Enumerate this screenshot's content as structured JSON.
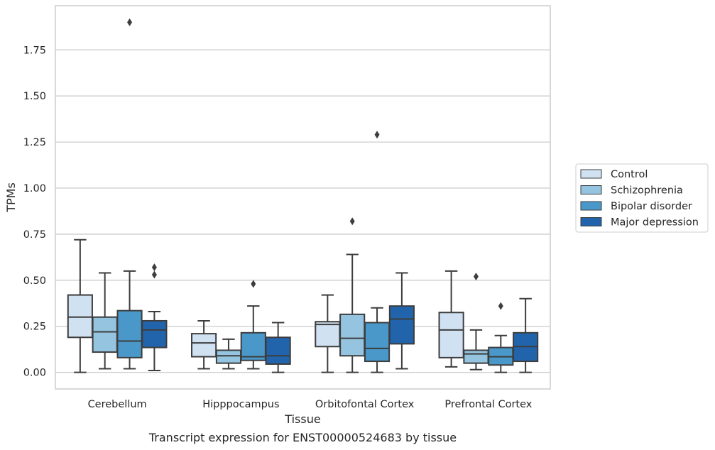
{
  "chart_data": {
    "type": "box",
    "caption": "Transcript expression for ENST00000524683 by tissue",
    "xlabel": "Tissue",
    "ylabel": "TPMs",
    "ylim": [
      -0.09,
      1.99
    ],
    "yticks": [
      0.0,
      0.25,
      0.5,
      0.75,
      1.0,
      1.25,
      1.5,
      1.75
    ],
    "ytick_labels": [
      "0.00",
      "0.25",
      "0.50",
      "0.75",
      "1.00",
      "1.25",
      "1.50",
      "1.75"
    ],
    "grid": "horizontal",
    "legend_position": "right",
    "categories": [
      "Cerebellum",
      "Hipppocampus",
      "Orbitofontal Cortex",
      "Prefrontal Cortex"
    ],
    "series": [
      {
        "name": "Control",
        "color": "#d0e1f2",
        "boxes": [
          {
            "whislo": 0.0,
            "q1": 0.19,
            "med": 0.3,
            "q3": 0.42,
            "whishi": 0.72,
            "fliers": []
          },
          {
            "whislo": 0.02,
            "q1": 0.085,
            "med": 0.16,
            "q3": 0.21,
            "whishi": 0.28,
            "fliers": []
          },
          {
            "whislo": 0.0,
            "q1": 0.14,
            "med": 0.26,
            "q3": 0.275,
            "whishi": 0.42,
            "fliers": []
          },
          {
            "whislo": 0.03,
            "q1": 0.08,
            "med": 0.23,
            "q3": 0.325,
            "whishi": 0.55,
            "fliers": []
          }
        ]
      },
      {
        "name": "Schizophrenia",
        "color": "#94c4df",
        "boxes": [
          {
            "whislo": 0.02,
            "q1": 0.11,
            "med": 0.22,
            "q3": 0.3,
            "whishi": 0.54,
            "fliers": []
          },
          {
            "whislo": 0.02,
            "q1": 0.05,
            "med": 0.09,
            "q3": 0.12,
            "whishi": 0.18,
            "fliers": []
          },
          {
            "whislo": 0.0,
            "q1": 0.09,
            "med": 0.185,
            "q3": 0.315,
            "whishi": 0.64,
            "fliers": [
              0.82
            ]
          },
          {
            "whislo": 0.015,
            "q1": 0.05,
            "med": 0.1,
            "q3": 0.12,
            "whishi": 0.23,
            "fliers": [
              0.52
            ]
          }
        ]
      },
      {
        "name": "Bipolar disorder",
        "color": "#4a98c9",
        "boxes": [
          {
            "whislo": 0.02,
            "q1": 0.08,
            "med": 0.17,
            "q3": 0.335,
            "whishi": 0.55,
            "fliers": [
              1.9
            ]
          },
          {
            "whislo": 0.02,
            "q1": 0.065,
            "med": 0.085,
            "q3": 0.215,
            "whishi": 0.36,
            "fliers": [
              0.48
            ]
          },
          {
            "whislo": 0.0,
            "q1": 0.06,
            "med": 0.13,
            "q3": 0.27,
            "whishi": 0.35,
            "fliers": [
              1.29
            ]
          },
          {
            "whislo": 0.0,
            "q1": 0.04,
            "med": 0.085,
            "q3": 0.135,
            "whishi": 0.2,
            "fliers": [
              0.36
            ]
          }
        ]
      },
      {
        "name": "Major depression",
        "color": "#2164ab",
        "boxes": [
          {
            "whislo": 0.01,
            "q1": 0.135,
            "med": 0.23,
            "q3": 0.28,
            "whishi": 0.33,
            "fliers": [
              0.53,
              0.57
            ]
          },
          {
            "whislo": 0.0,
            "q1": 0.045,
            "med": 0.09,
            "q3": 0.19,
            "whishi": 0.27,
            "fliers": []
          },
          {
            "whislo": 0.02,
            "q1": 0.155,
            "med": 0.29,
            "q3": 0.36,
            "whishi": 0.54,
            "fliers": []
          },
          {
            "whislo": 0.0,
            "q1": 0.06,
            "med": 0.14,
            "q3": 0.215,
            "whishi": 0.4,
            "fliers": []
          }
        ]
      }
    ]
  }
}
